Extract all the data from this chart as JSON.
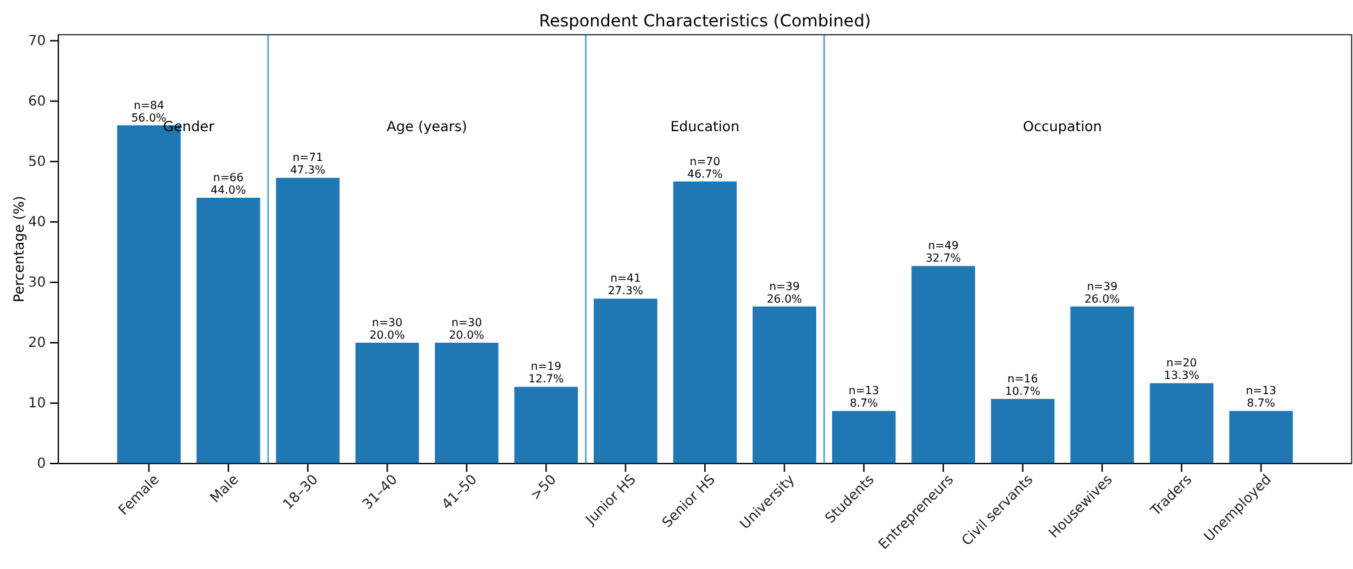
{
  "chart_data": {
    "type": "bar",
    "title": "Respondent Characteristics (Combined)",
    "ylabel": "Percentage (%)",
    "categories": [
      "Female",
      "Male",
      "18–30",
      "31–40",
      "41–50",
      ">50",
      "Junior HS",
      "Senior HS",
      "University",
      "Students",
      "Entrepreneurs",
      "Civil servants",
      "Housewives",
      "Traders",
      "Unemployed"
    ],
    "values": [
      56.0,
      44.0,
      47.3,
      20.0,
      20.0,
      12.7,
      27.3,
      46.7,
      26.0,
      8.7,
      32.7,
      10.7,
      26.0,
      13.3,
      8.7
    ],
    "value_labels": [
      "n=84\n56.0%",
      "n=66\n44.0%",
      "n=71\n47.3%",
      "n=30\n20.0%",
      "n=30\n20.0%",
      "n=19\n12.7%",
      "n=41\n27.3%",
      "n=70\n46.7%",
      "n=39\n26.0%",
      "n=13\n8.7%",
      "n=49\n32.7%",
      "n=16\n10.7%",
      "n=39\n26.0%",
      "n=20\n13.3%",
      "n=13\n8.7%"
    ],
    "color": "#1f77b4",
    "ylim": [
      0,
      71
    ],
    "yticks": [
      0,
      10,
      20,
      30,
      40,
      50,
      60,
      70
    ],
    "annotations": [
      "Gender",
      "Age (years)",
      "Education",
      "Occupation"
    ],
    "grid": false
  }
}
